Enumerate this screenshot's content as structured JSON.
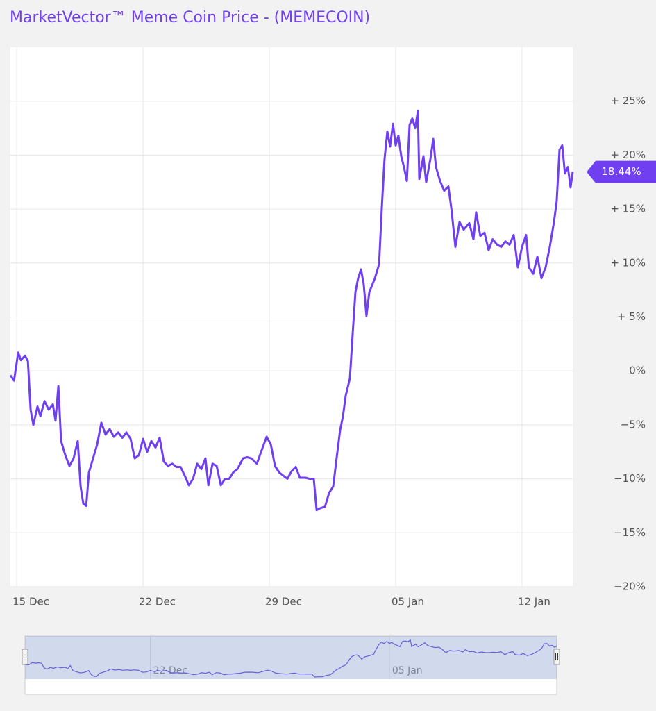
{
  "chart_data": {
    "type": "line",
    "title": "MarketVector™ Meme Coin Price - (MEMECOIN)",
    "color": "#7040f0",
    "grid": true,
    "x": [
      -0.35,
      -0.15,
      0.08,
      0.23,
      0.46,
      0.62,
      0.77,
      0.92,
      1.15,
      1.31,
      1.54,
      1.77,
      2.0,
      2.15,
      2.31,
      2.46,
      2.69,
      2.92,
      3.15,
      3.38,
      3.54,
      3.69,
      3.85,
      4.0,
      4.23,
      4.46,
      4.69,
      4.92,
      5.15,
      5.38,
      5.62,
      5.85,
      6.08,
      6.31,
      6.54,
      6.77,
      7.0,
      7.23,
      7.46,
      7.69,
      7.92,
      8.15,
      8.38,
      8.62,
      8.85,
      9.08,
      9.31,
      9.54,
      9.77,
      10.0,
      10.23,
      10.46,
      10.62,
      10.85,
      11.08,
      11.31,
      11.54,
      11.77,
      12.0,
      12.23,
      12.54,
      12.77,
      13.0,
      13.31,
      13.54,
      13.85,
      14.08,
      14.31,
      14.54,
      14.77,
      15.0,
      15.23,
      15.46,
      15.69,
      16.0,
      16.23,
      16.46,
      16.62,
      16.85,
      17.08,
      17.31,
      17.54,
      17.77,
      17.92,
      18.08,
      18.23,
      18.46,
      18.62,
      18.77,
      18.92,
      19.08,
      19.23,
      19.38,
      19.54,
      19.85,
      20.08,
      20.23,
      20.38,
      20.54,
      20.69,
      20.85,
      21.0,
      21.15,
      21.31,
      21.46,
      21.62,
      21.77,
      21.92,
      22.08,
      22.23,
      22.31,
      22.54,
      22.69,
      22.92,
      23.08,
      23.23,
      23.46,
      23.69,
      23.92,
      24.08,
      24.31,
      24.54,
      24.77,
      25.08,
      25.31,
      25.46,
      25.69,
      25.92,
      26.15,
      26.38,
      26.62,
      26.85,
      27.08,
      27.31,
      27.54,
      27.77,
      28.0,
      28.23,
      28.38,
      28.62,
      28.85,
      29.08,
      29.31,
      29.54,
      29.77,
      29.92,
      30.08,
      30.23,
      30.38,
      30.54,
      30.69,
      30.81
    ],
    "values": [
      -0.4,
      -0.9,
      1.7,
      1.0,
      1.4,
      0.9,
      -3.6,
      -5.0,
      -3.3,
      -4.2,
      -2.8,
      -3.6,
      -3.1,
      -4.6,
      -1.4,
      -6.5,
      -7.8,
      -8.8,
      -8.1,
      -6.5,
      -10.7,
      -12.3,
      -12.5,
      -9.4,
      -8.1,
      -6.8,
      -4.8,
      -5.9,
      -5.4,
      -6.1,
      -5.7,
      -6.2,
      -5.7,
      -6.3,
      -8.1,
      -7.8,
      -6.3,
      -7.5,
      -6.5,
      -7.1,
      -6.2,
      -8.4,
      -8.8,
      -8.6,
      -8.9,
      -8.9,
      -9.7,
      -10.6,
      -10.0,
      -8.6,
      -9.1,
      -8.1,
      -10.6,
      -8.6,
      -8.8,
      -10.6,
      -10.0,
      -10.0,
      -9.4,
      -9.1,
      -8.1,
      -8.0,
      -8.1,
      -8.6,
      -7.5,
      -6.1,
      -6.8,
      -8.8,
      -9.4,
      -9.7,
      -10.0,
      -9.3,
      -8.9,
      -9.9,
      -9.9,
      -10.0,
      -10.0,
      -12.9,
      -12.7,
      -12.6,
      -11.3,
      -10.7,
      -7.5,
      -5.5,
      -4.2,
      -2.3,
      -0.7,
      3.5,
      7.3,
      8.6,
      9.4,
      8.0,
      5.1,
      7.3,
      8.6,
      9.9,
      15.1,
      19.6,
      22.2,
      20.8,
      22.9,
      20.9,
      21.8,
      19.9,
      18.9,
      17.6,
      22.8,
      23.4,
      22.5,
      24.1,
      17.8,
      19.9,
      17.5,
      19.6,
      21.5,
      18.9,
      17.6,
      16.7,
      17.1,
      15.1,
      11.5,
      13.8,
      13.1,
      13.7,
      12.2,
      14.7,
      12.5,
      12.8,
      11.2,
      12.2,
      11.7,
      11.5,
      12.0,
      11.7,
      12.6,
      9.6,
      11.5,
      12.6,
      9.6,
      9.0,
      10.6,
      8.6,
      9.6,
      11.5,
      13.8,
      15.7,
      20.5,
      20.9,
      18.3,
      18.9,
      17.0,
      18.44
    ],
    "current_value": {
      "value": 18.44,
      "label": "18.44%"
    },
    "xlim": [
      -0.35,
      30.81
    ],
    "xticks": [
      {
        "value": 0,
        "label": "15 Dec"
      },
      {
        "value": 7,
        "label": "22 Dec"
      },
      {
        "value": 14,
        "label": "29 Dec"
      },
      {
        "value": 21,
        "label": "05 Jan"
      },
      {
        "value": 28,
        "label": "12 Jan"
      }
    ],
    "ylim": [
      -20,
      30
    ],
    "yticks": [
      {
        "value": 25,
        "label": "+ 25%"
      },
      {
        "value": 20,
        "label": "+ 20%"
      },
      {
        "value": 15,
        "label": "+ 15%"
      },
      {
        "value": 10,
        "label": "+ 10%"
      },
      {
        "value": 5,
        "label": "+ 5%"
      },
      {
        "value": 0,
        "label": "0%"
      },
      {
        "value": -5,
        "label": "−5%"
      },
      {
        "value": -10,
        "label": "−10%"
      },
      {
        "value": -15,
        "label": "−15%"
      },
      {
        "value": -20,
        "label": "−20%"
      }
    ],
    "navigator": {
      "xticks": [
        {
          "value": 7,
          "label": "22 Dec"
        },
        {
          "value": 21,
          "label": "05 Jan"
        }
      ]
    }
  }
}
